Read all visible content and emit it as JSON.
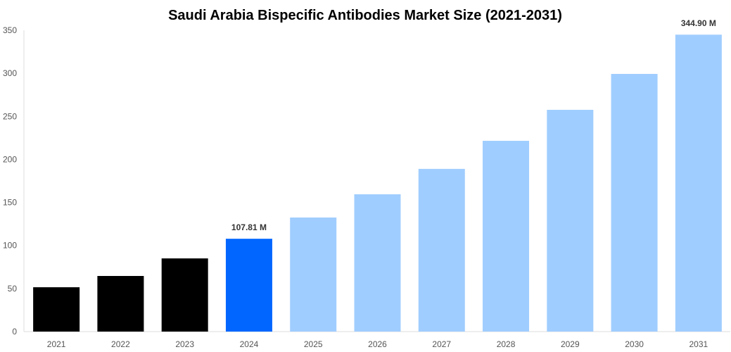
{
  "chart_data": {
    "type": "bar",
    "title": "Saudi Arabia Bispecific Antibodies Market Size (2021-2031)",
    "xlabel": "",
    "ylabel": "",
    "categories": [
      "2021",
      "2022",
      "2023",
      "2024",
      "2025",
      "2026",
      "2027",
      "2028",
      "2029",
      "2030",
      "2031"
    ],
    "values": [
      51.5,
      64.6,
      85.0,
      107.81,
      132.5,
      159.5,
      189.0,
      221.6,
      257.6,
      299.3,
      344.9
    ],
    "data_labels": {
      "3": "107.81 M",
      "10": "344.90 M"
    },
    "ylim": [
      0,
      350
    ],
    "yticks": [
      0,
      50,
      100,
      150,
      200,
      250,
      300,
      350
    ],
    "grid": false,
    "colors": {
      "historical": "#000000",
      "current": "#0066ff",
      "forecast": "#a0cdff"
    },
    "bar_color_groups": [
      "historical",
      "historical",
      "historical",
      "current",
      "forecast",
      "forecast",
      "forecast",
      "forecast",
      "forecast",
      "forecast",
      "forecast"
    ]
  }
}
